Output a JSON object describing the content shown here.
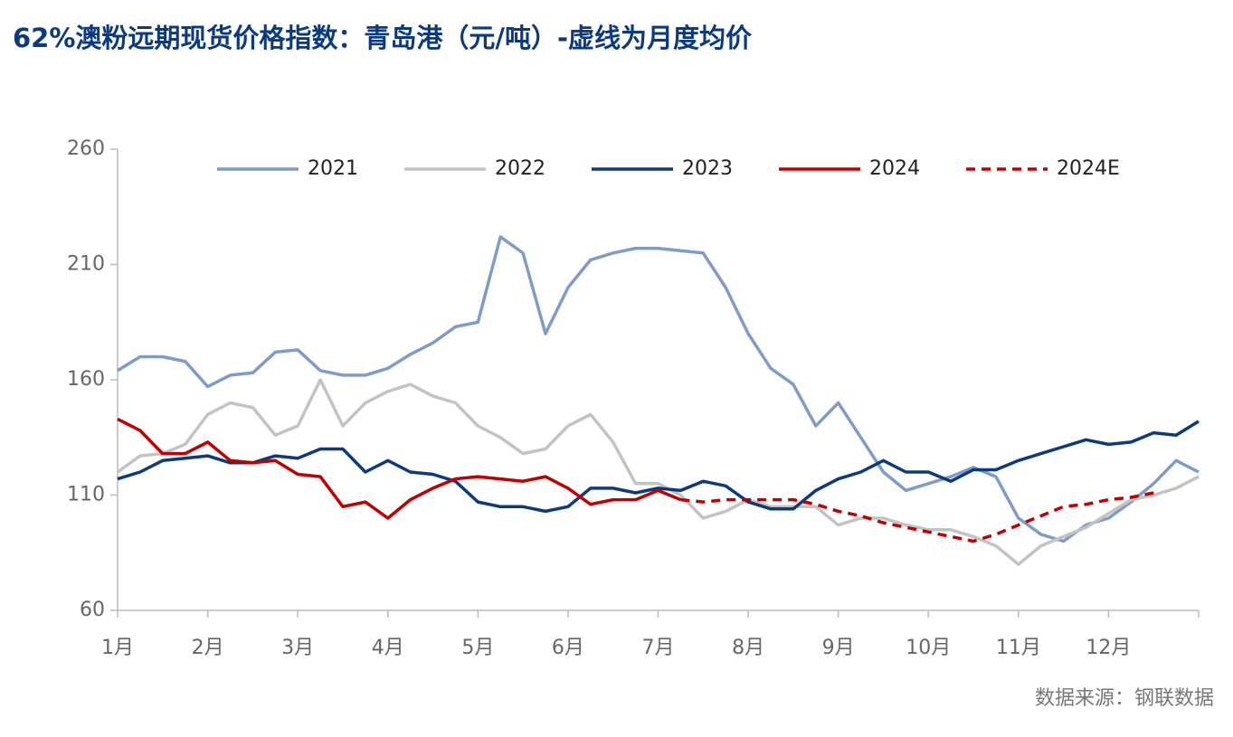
{
  "chart_data": {
    "type": "line",
    "title": "62%澳粉远期现货价格指数：青岛港（元/吨）-虚线为月度均价",
    "source": "数据来源：钢联数据",
    "x": [
      1,
      1.25,
      1.5,
      1.75,
      2,
      2.25,
      2.5,
      2.75,
      3,
      3.25,
      3.5,
      3.75,
      4,
      4.25,
      4.5,
      4.75,
      5,
      5.25,
      5.5,
      5.75,
      6,
      6.25,
      6.5,
      6.75,
      7,
      7.25,
      7.5,
      7.75,
      8,
      8.25,
      8.5,
      8.75,
      9,
      9.25,
      9.5,
      9.75,
      10,
      10.25,
      10.5,
      10.75,
      11,
      11.25,
      11.5,
      11.75,
      12,
      12.25,
      12.5,
      12.75,
      13
    ],
    "xlim": [
      1,
      13
    ],
    "xticks": [
      {
        "value": 1,
        "label": "1月"
      },
      {
        "value": 2,
        "label": "2月"
      },
      {
        "value": 3,
        "label": "3月"
      },
      {
        "value": 4,
        "label": "4月"
      },
      {
        "value": 5,
        "label": "5月"
      },
      {
        "value": 6,
        "label": "6月"
      },
      {
        "value": 7,
        "label": "7月"
      },
      {
        "value": 8,
        "label": "8月"
      },
      {
        "value": 9,
        "label": "9月"
      },
      {
        "value": 10,
        "label": "10月"
      },
      {
        "value": 11,
        "label": "11月"
      },
      {
        "value": 12,
        "label": "12月"
      }
    ],
    "ylim": [
      60,
      260
    ],
    "yticks": [
      60,
      110,
      160,
      210,
      260
    ],
    "grid": false,
    "legend": "top",
    "series": [
      {
        "name": "2021",
        "color": "#7f9cc9",
        "dashed": false,
        "values": [
          164,
          170,
          170,
          168,
          157,
          162,
          163,
          172,
          173,
          164,
          162,
          162,
          165,
          171,
          176,
          183,
          185,
          222,
          215,
          180,
          200,
          212,
          215,
          217,
          217,
          216,
          215,
          200,
          180,
          165,
          158,
          140,
          150,
          135,
          120,
          112,
          115,
          118,
          122,
          118,
          100,
          93,
          90,
          97,
          100,
          107,
          115,
          125,
          120
        ]
      },
      {
        "name": "2022",
        "color": "#c3c3c3",
        "dashed": false,
        "values": [
          120,
          127,
          128,
          132,
          145,
          150,
          148,
          136,
          140,
          160,
          140,
          150,
          155,
          158,
          153,
          150,
          140,
          135,
          128,
          130,
          140,
          145,
          133,
          115,
          115,
          110,
          100,
          103,
          108,
          105,
          105,
          105,
          97,
          100,
          100,
          97,
          95,
          95,
          92,
          88,
          80,
          88,
          92,
          96,
          102,
          108,
          110,
          113,
          118
        ]
      },
      {
        "name": "2023",
        "color": "#0d3a7d",
        "dashed": false,
        "values": [
          117,
          120,
          125,
          126,
          127,
          124,
          124,
          127,
          126,
          130,
          130,
          120,
          125,
          120,
          119,
          116,
          107,
          105,
          105,
          103,
          105,
          113,
          113,
          111,
          113,
          112,
          116,
          114,
          107,
          104,
          104,
          112,
          117,
          120,
          125,
          120,
          120,
          116,
          121,
          121,
          125,
          128,
          131,
          134,
          132,
          133,
          137,
          136,
          142
        ]
      },
      {
        "name": "2024",
        "color": "#c00000",
        "dashed": false,
        "values": [
          143,
          138,
          128,
          128,
          133,
          125,
          124,
          125,
          119,
          118,
          105,
          107,
          100,
          108,
          113,
          117,
          118,
          117,
          116,
          118,
          113,
          106,
          108,
          108,
          112,
          108,
          null,
          null,
          null,
          null,
          null,
          null,
          null,
          null,
          null,
          null,
          null,
          null,
          null,
          null,
          null,
          null,
          null,
          null,
          null,
          null,
          null,
          null,
          null
        ]
      },
      {
        "name": "2024E",
        "color": "#c00000",
        "dashed": true,
        "values": [
          null,
          null,
          null,
          null,
          null,
          null,
          null,
          null,
          null,
          null,
          null,
          null,
          null,
          null,
          null,
          null,
          null,
          null,
          null,
          null,
          null,
          null,
          null,
          null,
          null,
          108,
          107,
          108,
          108,
          108,
          108,
          106,
          103,
          101,
          98,
          96,
          94,
          92,
          90,
          93,
          97,
          101,
          105,
          106,
          108,
          109,
          111,
          null,
          null
        ]
      }
    ]
  }
}
